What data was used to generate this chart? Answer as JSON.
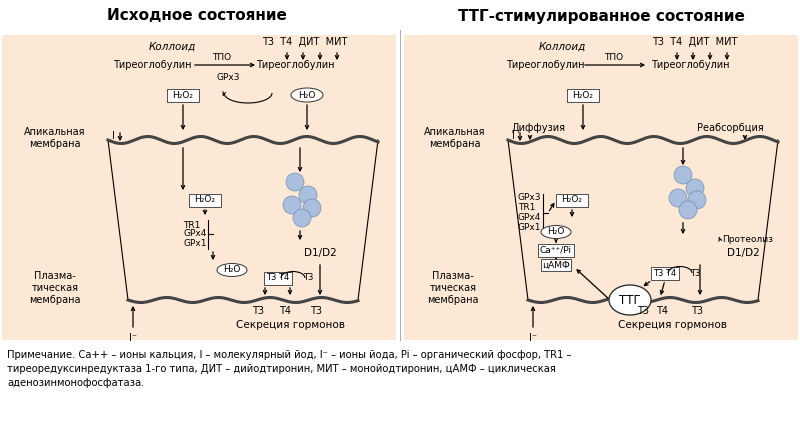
{
  "bg_color": "#fce8d5",
  "white_bg": "#ffffff",
  "title_left": "Исходное состояние",
  "title_right": "ТТГ-стимулированное состояние",
  "fn_line1": "Примечание. Ca++ – ионы кальция, I – молекулярный йод, I- – ионы йода, Pi – органический фосфор, TR1 –",
  "fn_line2": "тиреоредуксинредуктаза 1-го типа, ДИТ – дийодтиронин, МИТ – монойодтиронин, цАМФ – циклическая",
  "fn_line3": "аденозинмонофосфатаза."
}
